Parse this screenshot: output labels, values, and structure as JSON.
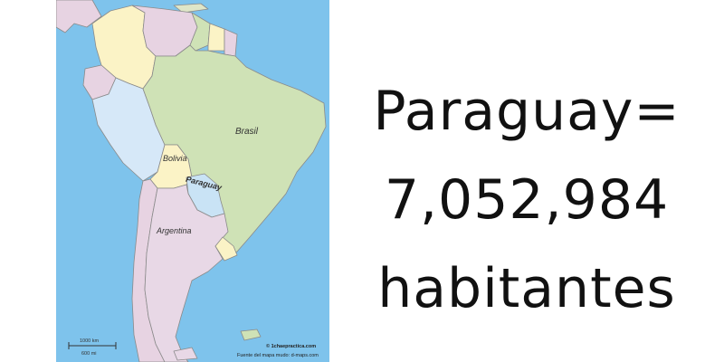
{
  "map": {
    "labels": {
      "brasil": "Brasil",
      "bolivia": "Bolivia",
      "paraguay": "Paraguay",
      "argentina": "Argentina"
    },
    "scale": {
      "km": "1000 km",
      "mi": "600 mi"
    },
    "credit": {
      "site": "© 1chaepractica.com",
      "source": "Fuente del mapa mudo: d-maps.com"
    },
    "colors": {
      "ocean": "#7ec3ec",
      "brasil": "#cfe2b6",
      "argentina": "#e8d8e6",
      "paraguay": "#c9e3f5",
      "bolivia": "#fbf3c6"
    }
  },
  "caption": {
    "line1": "Paraguay=",
    "line2": "7,052,984",
    "line3": "habitantes"
  }
}
